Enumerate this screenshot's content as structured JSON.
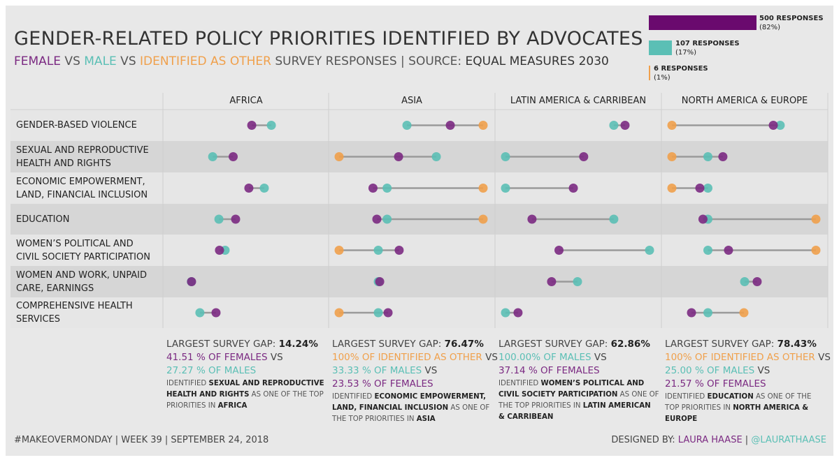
{
  "title": "GENDER-RELATED POLICY PRIORITIES IDENTIFIED BY ADVOCATES",
  "subtitle": {
    "female": "FEMALE",
    "vs1": " VS ",
    "male": "MALE",
    "vs2": " VS ",
    "other": "IDENTIFIED AS OTHER",
    "rest": " SURVEY RESPONSES | SOURCE: ",
    "source": "EQUAL MEASURES 2030"
  },
  "colors": {
    "female": "#7b2a82",
    "male": "#5bbfb5",
    "other": "#f0a04b",
    "female_legend": "#6a0a6e",
    "connector": "#9a9a9a"
  },
  "legend": [
    {
      "key": "female",
      "responses": "500 RESPONSES",
      "pct": "(82%)",
      "count": 500
    },
    {
      "key": "male",
      "responses": "107 RESPONSES",
      "pct": "(17%)",
      "count": 107
    },
    {
      "key": "other",
      "responses": "6 RESPONSES",
      "pct": "(1%)",
      "count": 6
    }
  ],
  "chart_data": {
    "type": "dumbbell",
    "xlim": [
      0,
      100
    ],
    "unit": "% of respondents",
    "regions": [
      "AFRICA",
      "ASIA",
      "LATIN AMERICA & CARRIBEAN",
      "NORTH AMERICA & EUROPE"
    ],
    "categories": [
      "GENDER-BASED VIOLENCE",
      "SEXUAL AND REPRODUCTIVE HEALTH AND RIGHTS",
      "ECONOMIC EMPOWERMENT, LAND, FINANCIAL INCLUSION",
      "EDUCATION",
      "WOMEN'S POLITICAL AND CIVIL SOCIETY PARTICIPATION",
      "WOMEN AND WORK, UNPAID CARE, EARNINGS",
      "COMPREHENSIVE HEALTH SERVICES"
    ],
    "category_labels": [
      [
        "GENDER-BASED VIOLENCE"
      ],
      [
        "SEXUAL AND REPRODUCTIVE",
        "HEALTH AND RIGHTS"
      ],
      [
        "ECONOMIC EMPOWERMENT,",
        "LAND, FINANCIAL INCLUSION"
      ],
      [
        "EDUCATION"
      ],
      [
        "WOMEN’S POLITICAL AND",
        "CIVIL SOCIETY PARTICIPATION"
      ],
      [
        "WOMEN AND WORK, UNPAID",
        "CARE, EARNINGS"
      ],
      [
        "COMPREHENSIVE HEALTH",
        "SERVICES"
      ]
    ],
    "series": [
      {
        "name": "FEMALE",
        "key": "female",
        "values": [
          [
            54.4,
            41.51,
            52.4,
            43.2,
            32.0,
            12.6,
            29.6
          ],
          [
            77.2,
            41.3,
            23.53,
            26.2,
            41.7,
            28.2,
            34.0
          ],
          [
            83.0,
            54.3,
            47.1,
            18.4,
            37.14,
            32.0,
            8.7
          ],
          [
            70.4,
            35.4,
            19.4,
            21.57,
            39.3,
            59.2,
            13.6
          ]
        ]
      },
      {
        "name": "MALE",
        "key": "male",
        "values": [
          [
            68.0,
            27.27,
            63.1,
            31.6,
            35.9,
            12.5,
            18.4
          ],
          [
            47.1,
            67.5,
            33.33,
            33.33,
            27.2,
            27.2,
            27.2
          ],
          [
            75.2,
            0,
            0,
            75.2,
            100,
            50.0,
            0
          ],
          [
            75.2,
            25.0,
            25.0,
            25.0,
            25.0,
            50.5,
            25.0
          ]
        ]
      },
      {
        "name": "IDENTIFIED AS OTHER",
        "key": "other",
        "values": [
          [
            null,
            null,
            null,
            null,
            null,
            null,
            null
          ],
          [
            100,
            0,
            100,
            100,
            0,
            null,
            0
          ],
          [
            null,
            null,
            null,
            null,
            null,
            null,
            null
          ],
          [
            0,
            0,
            0,
            100,
            100,
            null,
            50
          ]
        ]
      }
    ]
  },
  "summaries": [
    {
      "lines": [
        [
          {
            "t": "LARGEST SURVEY GAP: ",
            "c": "text"
          },
          {
            "t": "14.24%",
            "c": "strong"
          }
        ],
        [
          {
            "t": "41.51 % OF FEMALES",
            "c": "female"
          },
          {
            "t": " VS",
            "c": "text"
          }
        ],
        [
          {
            "t": "27.27 % OF MALES",
            "c": "male"
          }
        ]
      ],
      "detail": [
        {
          "t": "IDENTIFIED ",
          "b": false
        },
        {
          "t": " SEXUAL AND REPRODUCTIVE HEALTH AND RIGHTS",
          "b": true
        },
        {
          "t": " AS ONE OF THE TOP PRIORITIES IN ",
          "b": false
        },
        {
          "t": "AFRICA",
          "b": true
        }
      ]
    },
    {
      "lines": [
        [
          {
            "t": "LARGEST SURVEY GAP: ",
            "c": "text"
          },
          {
            "t": "76.47%",
            "c": "strong"
          }
        ],
        [
          {
            "t": "100% OF IDENTIFIED AS OTHER",
            "c": "other"
          },
          {
            "t": " VS",
            "c": "text"
          }
        ],
        [
          {
            "t": "33.33 % OF MALES",
            "c": "male"
          },
          {
            "t": " VS",
            "c": "text"
          }
        ],
        [
          {
            "t": "23.53 % OF FEMALES",
            "c": "female"
          }
        ]
      ],
      "detail": [
        {
          "t": "IDENTIFIED ",
          "b": false
        },
        {
          "t": " ECONOMIC EMPOWERMENT, LAND, FINANCIAL INCLUSION",
          "b": true
        },
        {
          "t": " AS ONE OF THE TOP PRIORITIES IN ",
          "b": false
        },
        {
          "t": "ASIA",
          "b": true
        }
      ]
    },
    {
      "lines": [
        [
          {
            "t": "LARGEST SURVEY GAP: ",
            "c": "text"
          },
          {
            "t": "62.86%",
            "c": "strong"
          }
        ],
        [
          {
            "t": "100.00% OF MALES",
            "c": "male"
          },
          {
            "t": "  VS",
            "c": "text"
          }
        ],
        [
          {
            "t": "37.14 % OF FEMALES",
            "c": "female"
          }
        ]
      ],
      "detail": [
        {
          "t": "IDENTIFIED ",
          "b": false
        },
        {
          "t": " WOMEN’S POLITICAL AND CIVIL SOCIETY PARTICIPATION",
          "b": true
        },
        {
          "t": " AS ONE OF THE TOP PRIORITIES IN ",
          "b": false
        },
        {
          "t": "LATIN AMERICAN & CARRIBEAN",
          "b": true
        }
      ]
    },
    {
      "lines": [
        [
          {
            "t": "LARGEST SURVEY GAP: ",
            "c": "text"
          },
          {
            "t": "78.43%",
            "c": "strong"
          }
        ],
        [
          {
            "t": "100% OF IDENTIFIED AS OTHER",
            "c": "other"
          },
          {
            "t": " VS",
            "c": "text"
          }
        ],
        [
          {
            "t": "25.00 % OF MALES",
            "c": "male"
          },
          {
            "t": " VS",
            "c": "text"
          }
        ],
        [
          {
            "t": "21.57 % OF FEMALES",
            "c": "female"
          }
        ]
      ],
      "detail": [
        {
          "t": "IDENTIFIED ",
          "b": false
        },
        {
          "t": " EDUCATION",
          "b": true
        },
        {
          "t": " AS ONE OF THE TOP PRIORITIES IN ",
          "b": false
        },
        {
          "t": "NORTH AMERICA & EUROPE",
          "b": true
        }
      ]
    }
  ],
  "footer": {
    "left": "#MAKEOVERMONDAY | WEEK 39 | SEPTEMBER 24, 2018",
    "designed_by": "DESIGNED BY: ",
    "author": "LAURA HAASE",
    "sep": " | ",
    "handle": "@LAURATHAASE"
  }
}
